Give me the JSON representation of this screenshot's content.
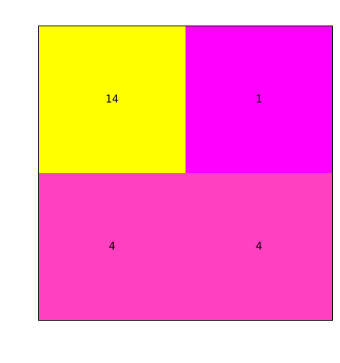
{
  "chart_data": {
    "type": "heatmap",
    "title": "",
    "xlabel": "",
    "ylabel": "",
    "rows": 2,
    "cols": 2,
    "values": [
      [
        14,
        1
      ],
      [
        4,
        4
      ]
    ],
    "labels": [
      [
        "14",
        "1"
      ],
      [
        "4",
        "4"
      ]
    ],
    "colors": [
      [
        "#ffff00",
        "#ff00ff"
      ],
      [
        "#ff40c0",
        "#ff40c0"
      ]
    ],
    "grid": false,
    "legend": "none"
  }
}
